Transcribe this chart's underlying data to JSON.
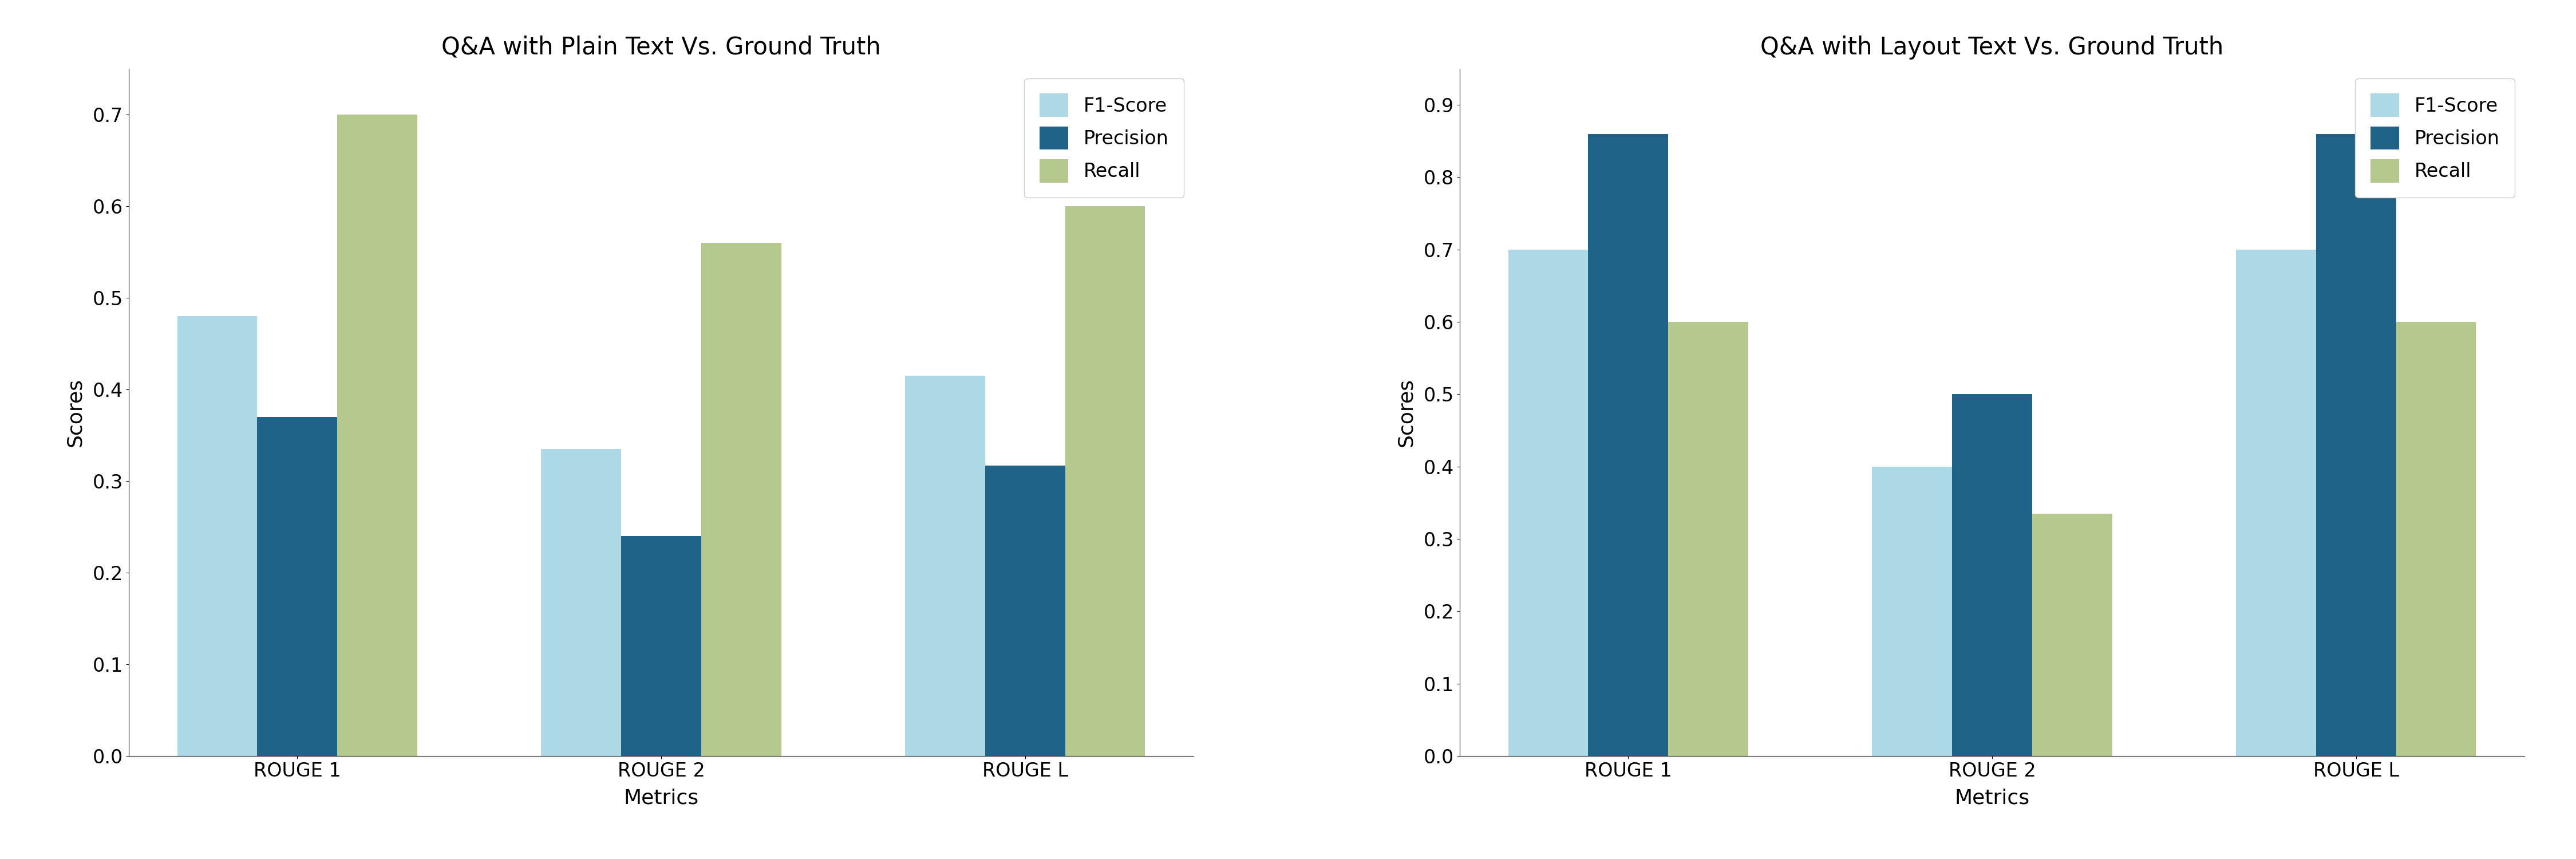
{
  "left_chart": {
    "title": "Q&A with Plain Text Vs. Ground Truth",
    "metrics": [
      "ROUGE 1",
      "ROUGE 2",
      "ROUGE L"
    ],
    "f1_score": [
      0.48,
      0.335,
      0.415
    ],
    "precision": [
      0.37,
      0.24,
      0.317
    ],
    "recall": [
      0.7,
      0.56,
      0.6
    ],
    "ylim": [
      0,
      0.75
    ],
    "yticks": [
      0.0,
      0.1,
      0.2,
      0.3,
      0.4,
      0.5,
      0.6,
      0.7
    ]
  },
  "right_chart": {
    "title": "Q&A with Layout Text Vs. Ground Truth",
    "metrics": [
      "ROUGE 1",
      "ROUGE 2",
      "ROUGE L"
    ],
    "f1_score": [
      0.7,
      0.4,
      0.7
    ],
    "precision": [
      0.86,
      0.5,
      0.86
    ],
    "recall": [
      0.6,
      0.335,
      0.6
    ],
    "ylim": [
      0,
      0.95
    ],
    "yticks": [
      0.0,
      0.1,
      0.2,
      0.3,
      0.4,
      0.5,
      0.6,
      0.7,
      0.8,
      0.9
    ]
  },
  "colors": {
    "f1_score": "#add8e6",
    "precision": "#1f6389",
    "recall": "#b5c98e"
  },
  "legend_labels": [
    "F1-Score",
    "Precision",
    "Recall"
  ],
  "xlabel": "Metrics",
  "ylabel": "Scores",
  "bar_width": 0.22,
  "title_fontsize": 30,
  "label_fontsize": 26,
  "tick_fontsize": 24,
  "legend_fontsize": 24
}
